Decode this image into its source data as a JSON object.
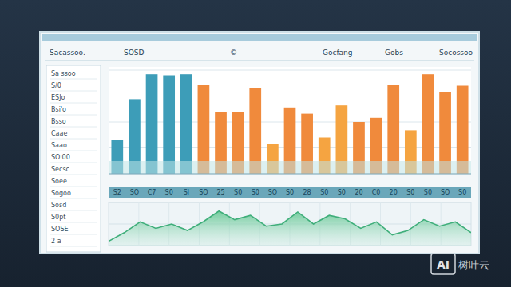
{
  "header": {
    "items": [
      "Sacassoo.",
      "SOSD",
      "©",
      "Gocfang",
      "Gobs",
      "Socossoo"
    ]
  },
  "sidebar": {
    "items": [
      "Sa ssoo",
      "S/0",
      "ESJo",
      "Bsi'o",
      "Bsso",
      "Caae",
      "Saao",
      "SO.00",
      "Secsc",
      "Soee",
      "Sogoo",
      "Sosd",
      "S0pt",
      "SOSE",
      "2 a"
    ]
  },
  "watermark": {
    "badge": "AI",
    "text": "树叶云"
  },
  "chart_data": [
    {
      "type": "bar",
      "categories": [
        "S2",
        "SO",
        "C7",
        "S0",
        "Sl",
        "SO",
        "25",
        "S0",
        "S0",
        "SO",
        "S0",
        "28",
        "S0",
        "S0",
        "20",
        "C0",
        "20",
        "S0",
        "S0",
        "SO",
        "S0"
      ],
      "values": [
        33,
        72,
        96,
        95,
        96,
        86,
        60,
        60,
        83,
        29,
        64,
        58,
        35,
        66,
        50,
        54,
        86,
        42,
        96,
        79,
        85
      ],
      "colors": [
        "#3d9db8",
        "#3d9db8",
        "#3d9db8",
        "#3d9db8",
        "#3d9db8",
        "#f08a3c",
        "#f08a3c",
        "#f08a3c",
        "#f08a3c",
        "#f5a441",
        "#f08a3c",
        "#f08a3c",
        "#f5a441",
        "#f5a441",
        "#f08a3c",
        "#f08a3c",
        "#f08a3c",
        "#f5a441",
        "#f08a3c",
        "#f08a3c",
        "#f08a3c"
      ],
      "ylim": [
        0,
        100
      ],
      "yticks": [
        0,
        25,
        50,
        75,
        100
      ],
      "grid": true,
      "tick_labels": "x"
    },
    {
      "type": "area",
      "categories": [
        null,
        null,
        null,
        null,
        null,
        null,
        null,
        null,
        null,
        null,
        null,
        null,
        null,
        null,
        null,
        null,
        null,
        null,
        null,
        null,
        null,
        null,
        null,
        null
      ],
      "values": [
        10,
        30,
        55,
        40,
        50,
        35,
        55,
        80,
        60,
        70,
        45,
        50,
        78,
        50,
        70,
        62,
        40,
        55,
        25,
        35,
        60,
        45,
        55,
        30
      ],
      "color": "#3fae7a",
      "ylim": [
        0,
        100
      ],
      "yticks": [
        0,
        50,
        100
      ],
      "grid": true,
      "tick_labels": false
    }
  ]
}
